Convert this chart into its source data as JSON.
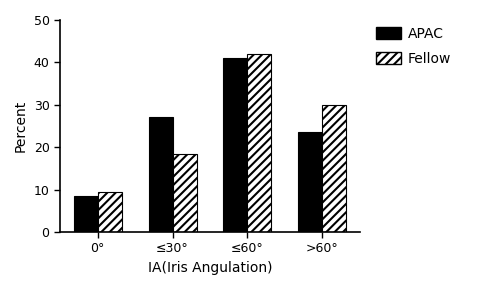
{
  "categories": [
    "0°",
    "≤30°",
    "≤60°",
    ">60°"
  ],
  "apac_values": [
    8.5,
    27,
    41,
    23.5
  ],
  "fellow_values": [
    9.5,
    18.5,
    42,
    30
  ],
  "bar_width": 0.32,
  "ylim": [
    0,
    50
  ],
  "yticks": [
    0,
    10,
    20,
    30,
    40,
    50
  ],
  "xlabel": "IA(Iris Angulation)",
  "ylabel": "Percent",
  "legend_labels": [
    "APAC",
    "Fellow"
  ],
  "apac_color": "#000000",
  "fellow_color": "#ffffff",
  "fellow_hatch": "////",
  "fellow_edgecolor": "#000000",
  "background_color": "#ffffff",
  "axis_fontsize": 10,
  "tick_fontsize": 9,
  "legend_fontsize": 10,
  "hatch_linewidth": 1.5
}
